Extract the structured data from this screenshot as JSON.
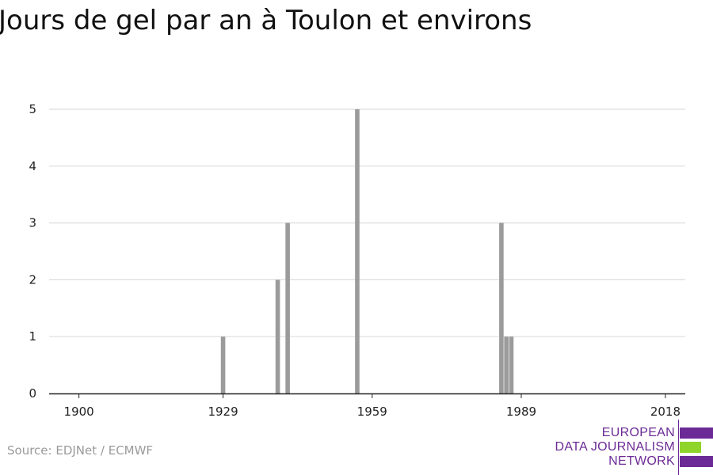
{
  "chart_data": {
    "type": "bar",
    "title": "Jours de gel par an à Toulon et environs",
    "xlabel": "",
    "ylabel": "",
    "xlim": [
      1894,
      2022
    ],
    "ylim": [
      0,
      5
    ],
    "x_ticks": [
      1900,
      1929,
      1959,
      1989,
      2018
    ],
    "y_ticks": [
      0,
      1,
      2,
      3,
      4,
      5
    ],
    "grid": true,
    "bar_color": "#9b9b9b",
    "points": [
      {
        "x": 1929,
        "y": 1
      },
      {
        "x": 1940,
        "y": 2
      },
      {
        "x": 1942,
        "y": 3
      },
      {
        "x": 1956,
        "y": 5
      },
      {
        "x": 1985,
        "y": 3
      },
      {
        "x": 1986,
        "y": 1
      },
      {
        "x": 1987,
        "y": 1
      }
    ]
  },
  "source": "Source: EDJNet / ECMWF",
  "logo": {
    "lines": [
      "EUROPEAN",
      "DATA JOURNALISM",
      "NETWORK"
    ],
    "text_color": "#6b2a95",
    "bar_colors": [
      "#6b2a95",
      "#8fd42a",
      "#6b2a95"
    ]
  }
}
